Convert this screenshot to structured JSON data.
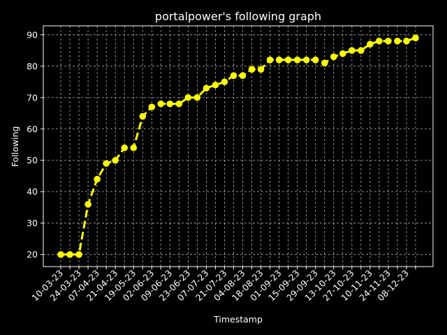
{
  "chart_data": {
    "type": "line",
    "title": "portalpower's following graph",
    "xlabel": "Timestamp",
    "ylabel": "Following",
    "ylim": [
      16.15,
      92.85
    ],
    "yticks": [
      20,
      30,
      40,
      50,
      60,
      70,
      80,
      90
    ],
    "xtick_labels": [
      "10-03-23",
      "24-03-23",
      "07-04-23",
      "21-04-23",
      "19-05-23",
      "02-06-23",
      "09-06-23",
      "23-06-23",
      "07-07-23",
      "21-07-23",
      "04-08-23",
      "18-08-23",
      "01-09-23",
      "15-09-23",
      "29-09-23",
      "13-10-23",
      "27-10-23",
      "10-11-23",
      "24-11-23",
      "08-12-23"
    ],
    "grid": true,
    "background": "#000000",
    "series": [
      {
        "color": "#ffff00",
        "line_style": "dashed",
        "marker": "circle",
        "values": [
          20,
          20,
          20,
          36,
          44,
          49,
          50,
          54,
          54,
          64,
          67,
          68,
          68,
          68,
          70,
          70,
          73,
          74,
          75,
          77,
          77,
          79,
          79,
          82,
          82,
          82,
          82,
          82,
          82,
          81,
          83,
          84,
          85,
          85,
          87,
          88,
          88,
          88,
          88,
          89
        ]
      }
    ]
  }
}
